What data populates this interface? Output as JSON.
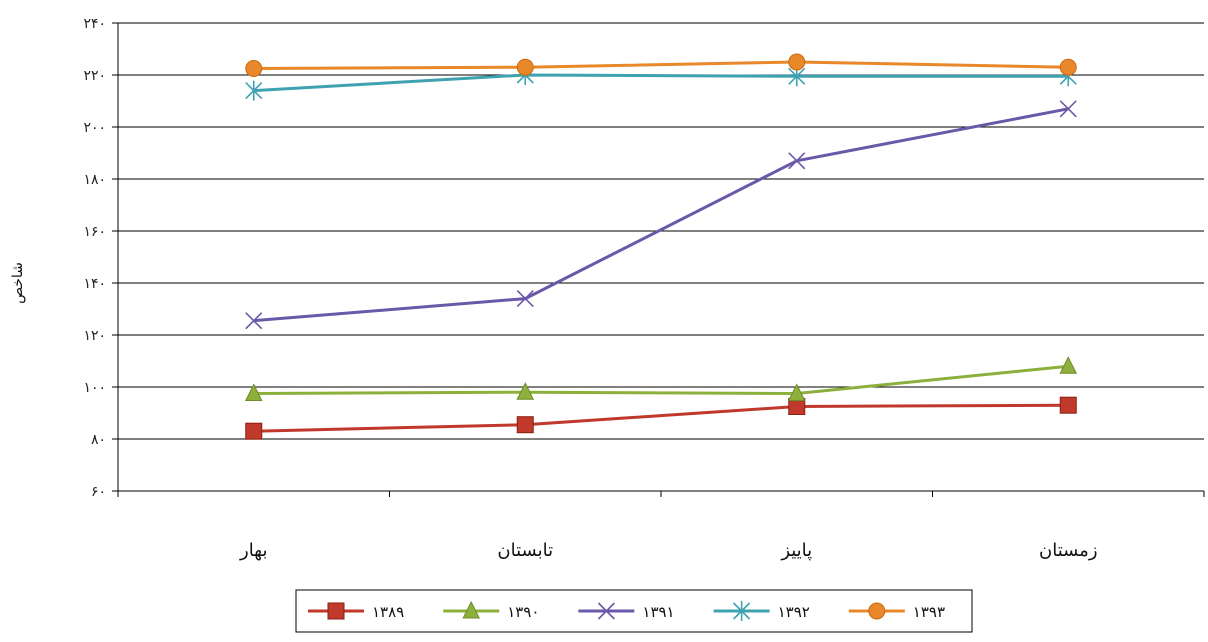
{
  "chart_data": {
    "type": "line",
    "categories": [
      "بهار",
      "تابستان",
      "پاییز",
      "زمستان"
    ],
    "ylabel": "شاخص",
    "ylim": [
      60,
      240
    ],
    "yticks": [
      60,
      80,
      100,
      120,
      140,
      160,
      180,
      200,
      220,
      240
    ],
    "ytick_labels": [
      "۶۰",
      "۸۰",
      "۱۰۰",
      "۱۲۰",
      "۱۴۰",
      "۱۶۰",
      "۱۸۰",
      "۲۰۰",
      "۲۲۰",
      "۲۴۰"
    ],
    "grid": true,
    "legend_position": "bottom",
    "series": [
      {
        "name": "۱۳۸۹",
        "values": [
          83,
          85.5,
          92.5,
          93
        ],
        "color": "#c0392b",
        "marker": "square"
      },
      {
        "name": "۱۳۹۰",
        "values": [
          97.5,
          98,
          97.5,
          108
        ],
        "color": "#8db03c",
        "marker": "triangle"
      },
      {
        "name": "۱۳۹۱",
        "values": [
          125.5,
          134,
          187,
          207
        ],
        "color": "#6a58a8",
        "marker": "x"
      },
      {
        "name": "۱۳۹۲",
        "values": [
          214,
          220,
          219.5,
          219.5
        ],
        "color": "#3fa2b0",
        "marker": "star"
      },
      {
        "name": "۱۳۹۳",
        "values": [
          222.5,
          223,
          225,
          223
        ],
        "color": "#e8882a",
        "marker": "circle"
      }
    ]
  }
}
